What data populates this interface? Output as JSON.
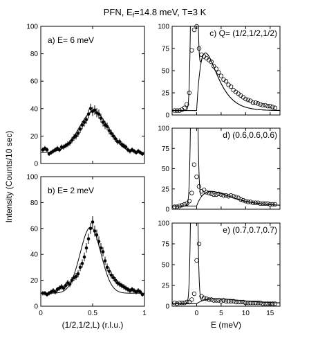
{
  "figure": {
    "title": "PFN, E",
    "title_sub": "f",
    "title_rest": "=14.8 meV, T=3 K",
    "ylabel": "Intensity (Counts/10 sec)"
  },
  "chart_data": [
    {
      "id": "a",
      "type": "scatter",
      "label": "a) E= 6 meV",
      "xlabel": "(1/2,1/2,L) (r.l.u.)",
      "xlim": [
        0,
        1
      ],
      "ylim": [
        0,
        100
      ],
      "xticks": [
        "0",
        "0.5",
        "1"
      ],
      "yticks": [
        "0",
        "20",
        "40",
        "60",
        "80",
        "100"
      ],
      "points": {
        "x": [
          0.02,
          0.04,
          0.06,
          0.08,
          0.1,
          0.12,
          0.14,
          0.16,
          0.18,
          0.2,
          0.22,
          0.24,
          0.26,
          0.28,
          0.3,
          0.32,
          0.34,
          0.36,
          0.38,
          0.4,
          0.42,
          0.44,
          0.46,
          0.48,
          0.5,
          0.52,
          0.54,
          0.56,
          0.58,
          0.6,
          0.62,
          0.64,
          0.66,
          0.68,
          0.7,
          0.72,
          0.74,
          0.76,
          0.78,
          0.8,
          0.82,
          0.84,
          0.86,
          0.88,
          0.9,
          0.92,
          0.94,
          0.96,
          0.98
        ],
        "y": [
          10,
          11,
          10,
          7,
          8,
          9,
          10,
          11,
          10,
          12,
          12,
          13,
          14,
          15,
          17,
          19,
          20,
          22,
          25,
          28,
          30,
          32,
          36,
          40,
          38,
          39,
          37,
          36,
          33,
          30,
          28,
          27,
          24,
          22,
          20,
          18,
          16,
          16,
          14,
          13,
          12,
          10,
          9,
          10,
          9,
          8,
          9,
          8,
          7
        ]
      },
      "fit": {
        "model": "gaussian",
        "baseline": 8,
        "amplitude": 30,
        "center": 0.51,
        "sigma": 0.14
      }
    },
    {
      "id": "b",
      "type": "scatter",
      "label": "b) E= 2 meV",
      "xlabel": "(1/2,1/2,L) (r.l.u.)",
      "xlim": [
        0,
        1
      ],
      "ylim": [
        0,
        100
      ],
      "xticks": [
        "0",
        "0.5",
        "1"
      ],
      "yticks": [
        "0",
        "20",
        "40",
        "60",
        "80",
        "100"
      ],
      "points": {
        "x": [
          0.02,
          0.04,
          0.06,
          0.08,
          0.1,
          0.12,
          0.14,
          0.16,
          0.18,
          0.2,
          0.22,
          0.24,
          0.26,
          0.28,
          0.3,
          0.32,
          0.34,
          0.36,
          0.38,
          0.4,
          0.42,
          0.44,
          0.46,
          0.48,
          0.5,
          0.52,
          0.54,
          0.56,
          0.58,
          0.6,
          0.62,
          0.64,
          0.66,
          0.68,
          0.7,
          0.72,
          0.74,
          0.76,
          0.78,
          0.8,
          0.82,
          0.84,
          0.86,
          0.88,
          0.9,
          0.92,
          0.94,
          0.96,
          0.98
        ],
        "y": [
          10,
          10,
          9,
          10,
          11,
          12,
          11,
          13,
          14,
          15,
          14,
          16,
          18,
          17,
          20,
          22,
          23,
          25,
          30,
          33,
          38,
          45,
          52,
          60,
          65,
          58,
          55,
          50,
          45,
          42,
          35,
          30,
          27,
          24,
          22,
          20,
          18,
          17,
          16,
          15,
          14,
          13,
          12,
          13,
          12,
          11,
          12,
          11,
          9
        ]
      },
      "fit": {
        "model": "gaussian",
        "baseline": 10,
        "amplitude": 51,
        "center": 0.48,
        "sigma": 0.1
      }
    },
    {
      "id": "c",
      "type": "scatter",
      "label": "c) Q= (1/2,1/2,1/2)",
      "xlabel": "E (meV)",
      "xlim": [
        -5,
        17
      ],
      "ylim": [
        0,
        100
      ],
      "xticks": [
        "0",
        "5",
        "10",
        "15"
      ],
      "yticks": [
        "0",
        "25",
        "50",
        "75",
        "100"
      ],
      "points": {
        "x": [
          -4.5,
          -4,
          -3.5,
          -3,
          -2.5,
          -2,
          -1.5,
          -1,
          -0.5,
          0,
          0.5,
          1,
          1.5,
          2,
          2.5,
          3,
          3.5,
          4,
          4.5,
          5,
          5.5,
          6,
          6.5,
          7,
          7.5,
          8,
          8.5,
          9,
          9.5,
          10,
          10.5,
          11,
          11.5,
          12,
          12.5,
          13,
          13.5,
          14,
          14.5,
          15,
          15.5,
          16
        ],
        "y": [
          5,
          5,
          5,
          6,
          8,
          12,
          25,
          73,
          96,
          100,
          75,
          68,
          66,
          64,
          62,
          60,
          55,
          52,
          48,
          44,
          40,
          38,
          34,
          32,
          28,
          26,
          24,
          22,
          20,
          18,
          17,
          16,
          14,
          14,
          13,
          12,
          11,
          11,
          10,
          10,
          9,
          8
        ]
      },
      "fit": {
        "model": "elastic peak + damped response",
        "elastic_center": -0.5,
        "elastic_fwhm": 1.0,
        "inelastic_peak_energy": 1.8,
        "inelastic_peak_value": 65,
        "background": 5
      }
    },
    {
      "id": "d",
      "type": "scatter",
      "label": "d) (0.6,0.6,0.6)",
      "xlabel": "E (meV)",
      "xlim": [
        -5,
        17
      ],
      "ylim": [
        0,
        100
      ],
      "xticks": [
        "0",
        "5",
        "10",
        "15"
      ],
      "yticks": [
        "0",
        "25",
        "50",
        "75",
        "100"
      ],
      "points": {
        "x": [
          -4.5,
          -4,
          -3.5,
          -3,
          -2.5,
          -2,
          -1.5,
          -1,
          -0.5,
          0,
          0.5,
          1,
          1.5,
          2,
          2.5,
          3,
          3.5,
          4,
          4.5,
          5,
          5.5,
          6,
          6.5,
          7,
          7.5,
          8,
          8.5,
          9,
          9.5,
          10,
          10.5,
          11,
          11.5,
          12,
          12.5,
          13,
          13.5,
          14,
          14.5,
          15,
          15.5,
          16
        ],
        "y": [
          3,
          3,
          4,
          5,
          6,
          7,
          10,
          20,
          55,
          40,
          28,
          22,
          24,
          21,
          20,
          19,
          18,
          18,
          19,
          18,
          17,
          17,
          16,
          17,
          16,
          15,
          14,
          12,
          11,
          10,
          9,
          9,
          8,
          8,
          8,
          7,
          7,
          7,
          7,
          6,
          6,
          6
        ]
      },
      "fit": {
        "model": "elastic peak + damped response",
        "elastic_center": -0.5,
        "elastic_fwhm": 1.0,
        "inelastic_peak_energy": 3.0,
        "inelastic_peak_value": 18,
        "background": 4
      }
    },
    {
      "id": "e",
      "type": "scatter",
      "label": "e) (0.7,0.7,0.7)",
      "xlabel": "E (meV)",
      "xlim": [
        -5,
        17
      ],
      "ylim": [
        0,
        100
      ],
      "xticks": [
        "0",
        "5",
        "10",
        "15"
      ],
      "yticks": [
        "0",
        "25",
        "50",
        "75",
        "100"
      ],
      "points": {
        "x": [
          -4.5,
          -4,
          -3.5,
          -3,
          -2.5,
          -2,
          -1.5,
          -1,
          -0.5,
          0,
          0.5,
          1,
          1.5,
          2,
          2.5,
          3,
          3.5,
          4,
          4.5,
          5,
          5.5,
          6,
          6.5,
          7,
          7.5,
          8,
          8.5,
          9,
          9.5,
          10,
          10.5,
          11,
          11.5,
          12,
          12.5,
          13,
          13.5,
          14,
          14.5,
          15,
          15.5,
          16
        ],
        "y": [
          4,
          3,
          4,
          4,
          4,
          5,
          5,
          8,
          15,
          55,
          75,
          12,
          10,
          9,
          8,
          8,
          7,
          7,
          7,
          6,
          7,
          6,
          6,
          6,
          6,
          5,
          5,
          5,
          5,
          4,
          4,
          4,
          4,
          4,
          4,
          4,
          3,
          3,
          3,
          3,
          3,
          3
        ]
      },
      "fit": {
        "model": "elastic peak + damped response",
        "elastic_center": -0.5,
        "elastic_fwhm": 1.0,
        "inelastic_peak_energy": 4.0,
        "inelastic_peak_value": 6,
        "background": 3
      }
    }
  ]
}
